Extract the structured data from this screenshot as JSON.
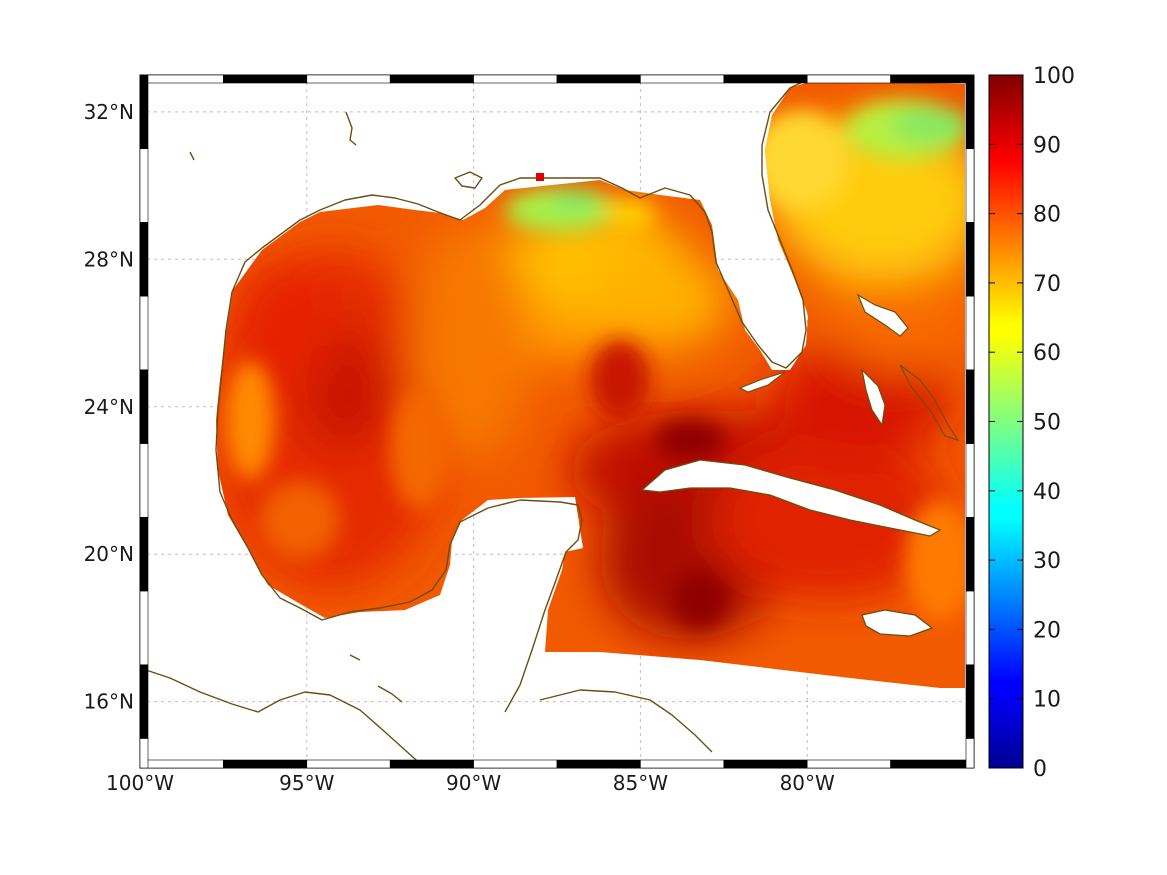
{
  "map": {
    "lon_range": [
      -100,
      -75
    ],
    "lat_range": [
      14.2,
      33
    ],
    "lon_ticks": [
      {
        "value": -100,
        "label": "100°W"
      },
      {
        "value": -95,
        "label": "95°W"
      },
      {
        "value": -90,
        "label": "90°W"
      },
      {
        "value": -85,
        "label": "85°W"
      },
      {
        "value": -80,
        "label": "80°W"
      }
    ],
    "lat_ticks": [
      {
        "value": 32,
        "label": "32°N"
      },
      {
        "value": 28,
        "label": "28°N"
      },
      {
        "value": 24,
        "label": "24°N"
      },
      {
        "value": 20,
        "label": "20°N"
      },
      {
        "value": 16,
        "label": "16°N"
      }
    ],
    "grid": true,
    "coastline_color": "#6b4e12",
    "land_color": "#ffffff"
  },
  "colorbar": {
    "min": 0,
    "max": 100,
    "ticks": [
      "0",
      "10",
      "20",
      "30",
      "40",
      "50",
      "60",
      "70",
      "80",
      "90",
      "100"
    ],
    "colormap": "jet",
    "placement": "right"
  }
}
